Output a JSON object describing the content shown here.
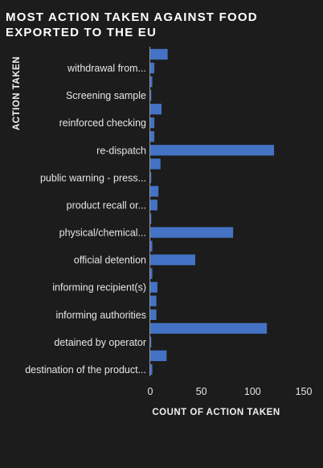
{
  "chart_data": {
    "type": "bar",
    "orientation": "horizontal",
    "title": "MOST ACTION TAKEN AGAINST FOOD EXPORTED TO THE EU",
    "xlabel": "COUNT OF ACTION TAKEN",
    "ylabel": "ACTION TAKEN",
    "xlim": [
      0,
      150
    ],
    "xticks": [
      "0",
      "50",
      "100",
      "150"
    ],
    "bar_color": "#4472c4",
    "grid": false,
    "categories": [
      "",
      "withdrawal from...",
      "",
      "Screening sample",
      "",
      "reinforced checking",
      "",
      "re-dispatch",
      "",
      "public warning - press...",
      "",
      "product recall or...",
      "",
      "physical/chemical...",
      "",
      "official detention",
      "",
      "informing recipient(s)",
      "",
      "informing authorities",
      "",
      "detained by operator",
      "",
      "destination of the product..."
    ],
    "values": [
      17,
      4,
      2,
      1,
      11,
      4,
      4,
      121,
      10,
      1,
      8,
      7,
      1,
      81,
      2,
      44,
      2,
      7,
      6,
      6,
      114,
      1,
      16,
      2
    ]
  }
}
